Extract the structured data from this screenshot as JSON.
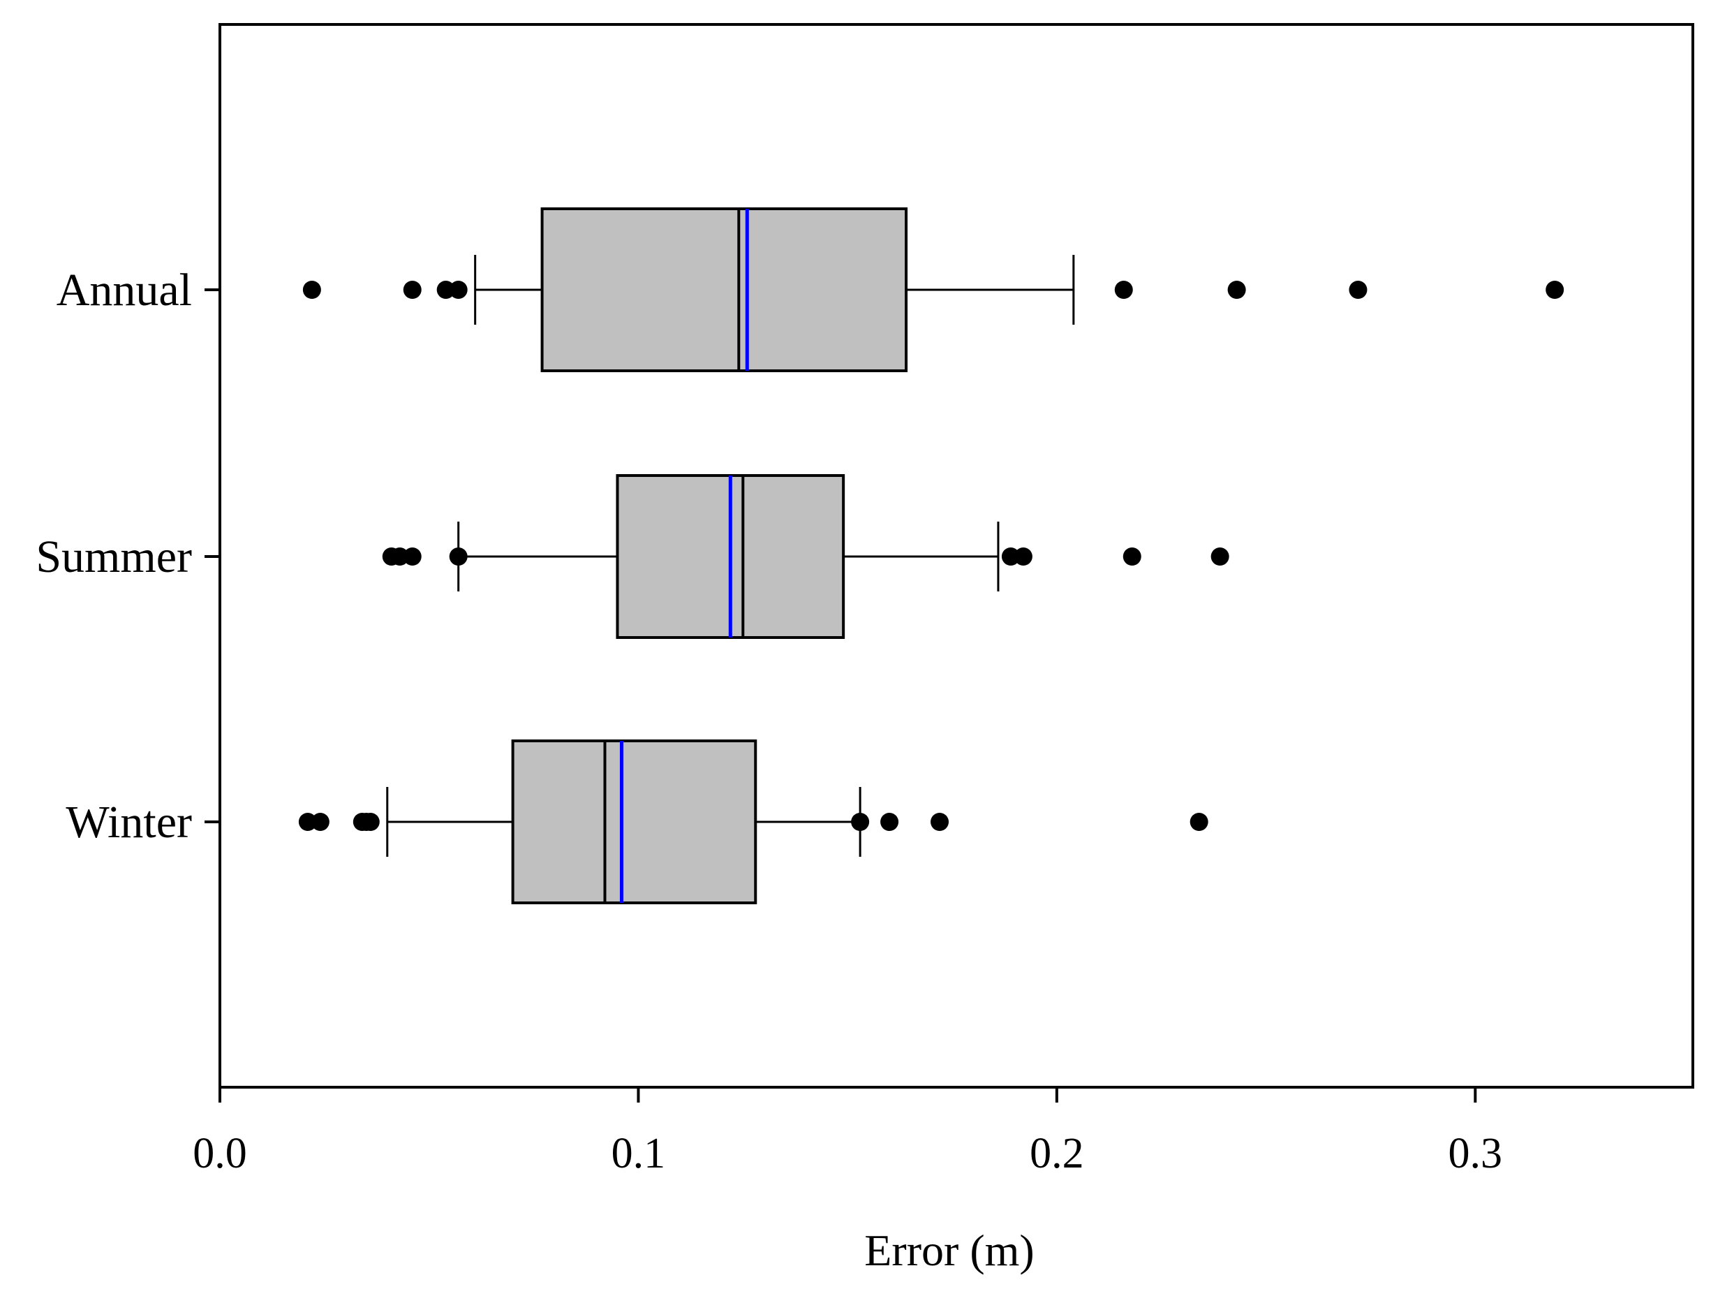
{
  "chart_data": {
    "type": "boxplot",
    "orientation": "horizontal",
    "title": "",
    "xlabel": "Error (m)",
    "ylabel": "",
    "xlim": [
      0.0,
      0.352
    ],
    "xticks": [
      0.0,
      0.1,
      0.2,
      0.3
    ],
    "xtick_labels": [
      "0.0",
      "0.1",
      "0.2",
      "0.3"
    ],
    "grid": false,
    "legend": "none",
    "colors": {
      "box_fill": "#c0c0c0",
      "median": "#000000",
      "mean": "#0000ff",
      "points": "#000000"
    },
    "categories": [
      "Annual",
      "Summer",
      "Winter"
    ],
    "series": [
      {
        "category": "Annual",
        "whisker_low": 0.061,
        "q1": 0.077,
        "median": 0.124,
        "mean": 0.126,
        "q3": 0.164,
        "whisker_high": 0.204,
        "outliers": [
          0.022,
          0.046,
          0.054,
          0.057,
          0.216,
          0.243,
          0.272,
          0.319
        ]
      },
      {
        "category": "Summer",
        "whisker_low": 0.057,
        "q1": 0.095,
        "median": 0.125,
        "mean": 0.122,
        "q3": 0.149,
        "whisker_high": 0.186,
        "outliers": [
          0.041,
          0.043,
          0.046,
          0.057,
          0.189,
          0.192,
          0.218,
          0.239
        ]
      },
      {
        "category": "Winter",
        "whisker_low": 0.04,
        "q1": 0.07,
        "median": 0.092,
        "mean": 0.096,
        "q3": 0.128,
        "whisker_high": 0.153,
        "outliers": [
          0.021,
          0.024,
          0.034,
          0.035,
          0.036,
          0.153,
          0.16,
          0.172,
          0.234
        ]
      }
    ]
  }
}
